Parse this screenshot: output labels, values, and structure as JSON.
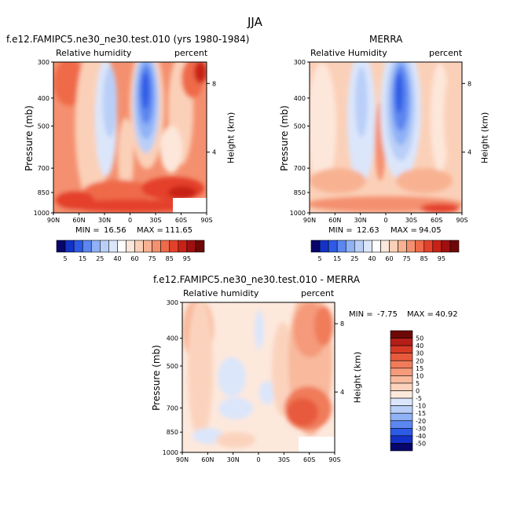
{
  "page_title": "JJA",
  "colors": {
    "full_scale": [
      "#06066b",
      "#1432c8",
      "#2d5be6",
      "#5c86f0",
      "#8fb1f6",
      "#b9cff8",
      "#dbe6fb",
      "#ffffff",
      "#fde7da",
      "#fbd0b8",
      "#f8b292",
      "#f4906f",
      "#ef6a4a",
      "#e4412c",
      "#c82218",
      "#a01010",
      "#6e0808"
    ],
    "diff_scale": [
      "#06066b",
      "#1432c8",
      "#2d5be6",
      "#5c86f0",
      "#8fb1f6",
      "#b9cff8",
      "#dbe6fb",
      "#fde8dc",
      "#fbd3bd",
      "#f8b99c",
      "#f59a7a",
      "#f07b5a",
      "#e85a3d",
      "#d63a26",
      "#b41e16",
      "#6e0808"
    ]
  },
  "chart_data": [
    {
      "type": "heatmap",
      "title": "f.e12.FAMIPC5.ne30_ne30.test.010 (yrs 1980-1984)",
      "subtitle_left": "Relative humidity",
      "subtitle_right": "percent",
      "ylabel": "Pressure (mb)",
      "ylabel_right": "Height (km)",
      "x_ticks": [
        "90N",
        "60N",
        "30N",
        "0",
        "30S",
        "60S",
        "90S"
      ],
      "y_ticks": [
        "300",
        "400",
        "500",
        "700",
        "850",
        "1000"
      ],
      "y2_ticks": [
        "8",
        "4"
      ],
      "ylim": [
        1000,
        300
      ],
      "min_label": "MIN =",
      "min_value": "16.56",
      "max_label": "MAX =",
      "max_value": "111.65",
      "colorbar_labels": [
        "5",
        "15",
        "25",
        "40",
        "60",
        "75",
        "85",
        "95"
      ]
    },
    {
      "type": "heatmap",
      "title": "MERRA",
      "subtitle_left": "Relative Humidity",
      "subtitle_right": "percent",
      "ylabel": "Pressure (mb)",
      "ylabel_right": "Height (km)",
      "x_ticks": [
        "90N",
        "60N",
        "30N",
        "0",
        "30S",
        "60S",
        "90S"
      ],
      "y_ticks": [
        "300",
        "400",
        "500",
        "700",
        "850",
        "1000"
      ],
      "y2_ticks": [
        "8",
        "4"
      ],
      "ylim": [
        1000,
        300
      ],
      "min_label": "MIN =",
      "min_value": "12.63",
      "max_label": "MAX =",
      "max_value": "94.05",
      "colorbar_labels": [
        "5",
        "15",
        "25",
        "40",
        "60",
        "75",
        "85",
        "95"
      ]
    },
    {
      "type": "heatmap",
      "title": "f.e12.FAMIPC5.ne30_ne30.test.010 - MERRA",
      "subtitle_left": "Relative humidity",
      "subtitle_right": "percent",
      "ylabel": "Pressure (mb)",
      "ylabel_right": "Height (km)",
      "x_ticks": [
        "90N",
        "60N",
        "30N",
        "0",
        "30S",
        "60S",
        "90S"
      ],
      "y_ticks": [
        "300",
        "400",
        "500",
        "700",
        "850",
        "1000"
      ],
      "y2_ticks": [
        "8",
        "4"
      ],
      "ylim": [
        1000,
        300
      ],
      "min_label": "MIN =",
      "min_value": "-7.75",
      "max_label": "MAX =",
      "max_value": "40.92",
      "colorbar_labels": [
        "50",
        "40",
        "30",
        "20",
        "15",
        "10",
        "5",
        "0",
        "-5",
        "-10",
        "-15",
        "-20",
        "-30",
        "-40",
        "-50"
      ]
    }
  ]
}
